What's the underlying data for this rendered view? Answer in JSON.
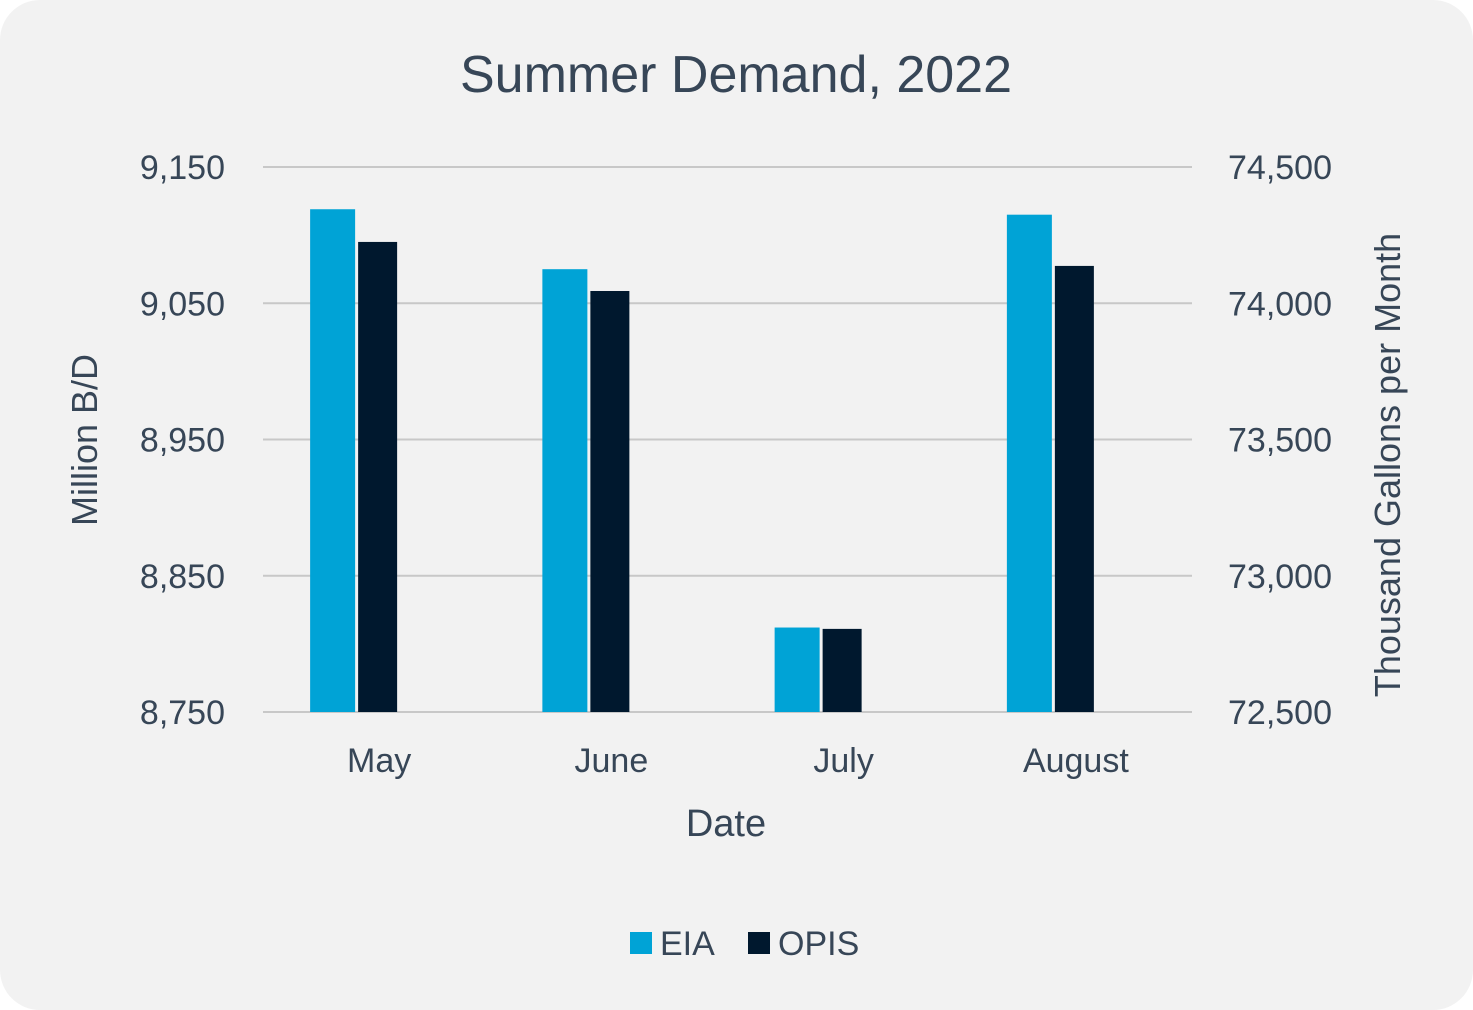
{
  "chart_data": {
    "type": "bar",
    "title": "Summer Demand, 2022",
    "xlabel": "Date",
    "ylabel": "Million B/D",
    "y2label": "Thousand Gallons per Month",
    "categories": [
      "May",
      "June",
      "July",
      "August"
    ],
    "ylim": [
      8750,
      9150
    ],
    "y2lim": [
      72500,
      74500
    ],
    "yticks": [
      "8,750",
      "8,850",
      "8,950",
      "9,050",
      "9,150"
    ],
    "y2ticks": [
      "72,500",
      "73,000",
      "73,500",
      "74,000",
      "74,500"
    ],
    "grid": true,
    "legend_position": "bottom",
    "series": [
      {
        "name": "EIA",
        "axis": "left",
        "color": "#00a3d6",
        "values": [
          9119,
          9075,
          8812,
          9115
        ]
      },
      {
        "name": "OPIS",
        "axis": "right",
        "color": "#00182e",
        "values": [
          74225,
          74045,
          72805,
          74137
        ]
      }
    ]
  }
}
